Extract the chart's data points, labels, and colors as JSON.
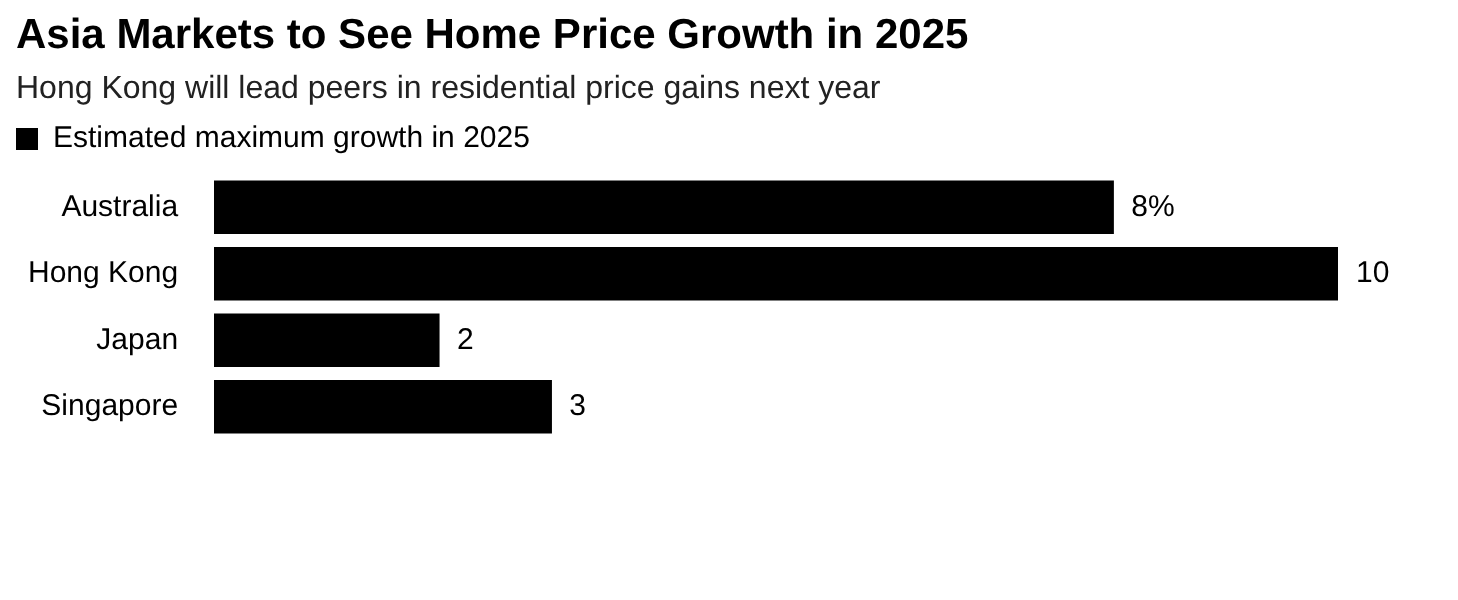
{
  "chart_data": {
    "type": "bar",
    "orientation": "horizontal",
    "title": "Asia Markets to See Home Price Growth in 2025",
    "subtitle": "Hong Kong will lead peers in residential price gains next year",
    "categories": [
      "Australia",
      "Hong Kong",
      "Japan",
      "Singapore"
    ],
    "series": [
      {
        "name": "Estimated maximum growth in 2025",
        "color": "#000000",
        "values": [
          8,
          10,
          2,
          3
        ],
        "value_labels": [
          "8%",
          "10",
          "2",
          "3"
        ]
      }
    ],
    "legend": "top left"
  }
}
